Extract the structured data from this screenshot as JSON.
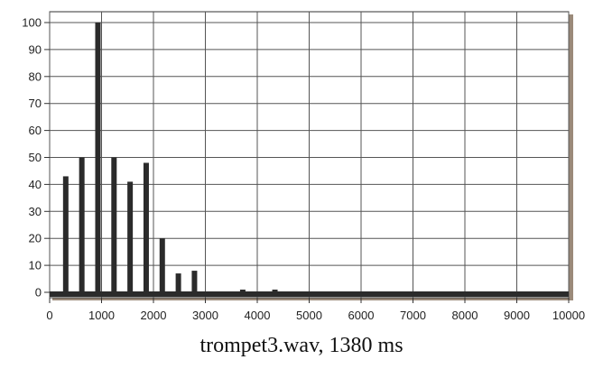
{
  "chart_data": {
    "type": "bar",
    "title": "trompet3.wav, 1380 ms",
    "xlim": [
      0,
      10000
    ],
    "ylim": [
      0,
      100
    ],
    "x_ticks": [
      0,
      1000,
      2000,
      3000,
      4000,
      5000,
      6000,
      7000,
      8000,
      9000,
      10000
    ],
    "y_ticks": [
      0,
      10,
      20,
      30,
      40,
      50,
      60,
      70,
      80,
      90,
      100
    ],
    "grid": true,
    "legend": "none",
    "bar_color": "#2b2b2b",
    "x": [
      310,
      620,
      930,
      1240,
      1550,
      1860,
      2170,
      2480,
      2790,
      3720,
      4340
    ],
    "values": [
      43,
      50,
      100,
      50,
      41,
      48,
      20,
      7,
      8,
      1,
      1
    ]
  }
}
